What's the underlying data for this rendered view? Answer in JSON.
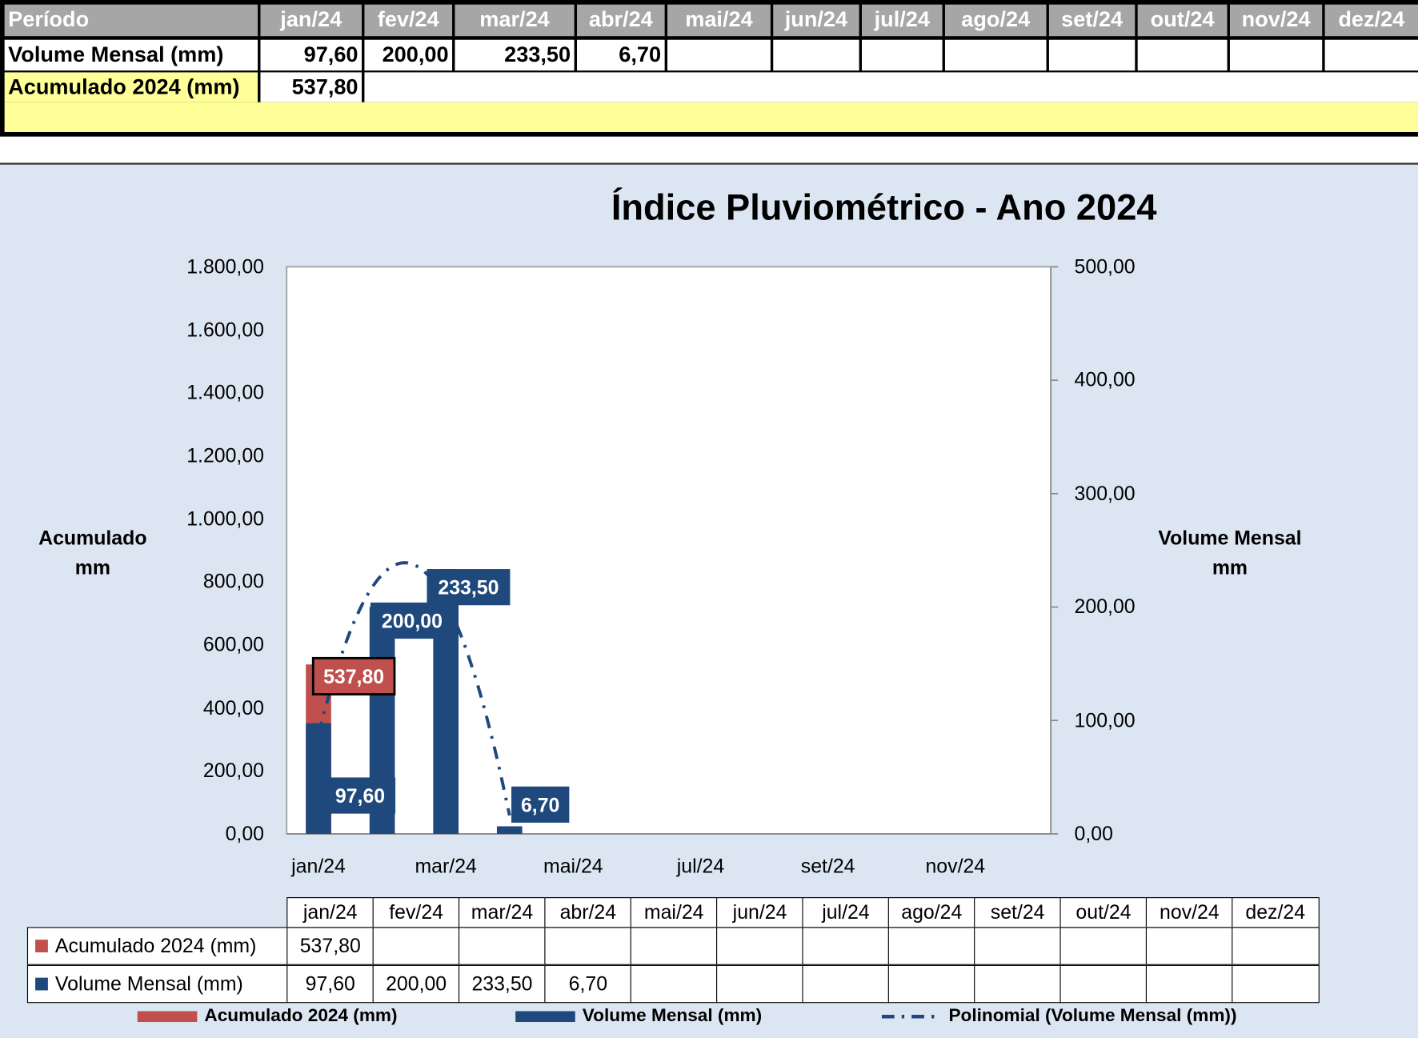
{
  "table": {
    "header_label": "Período",
    "months": [
      "jan/24",
      "fev/24",
      "mar/24",
      "abr/24",
      "mai/24",
      "jun/24",
      "jul/24",
      "ago/24",
      "set/24",
      "out/24",
      "nov/24",
      "dez/24"
    ],
    "volume_label": "Volume Mensal (mm)",
    "volume_values": [
      "97,60",
      "200,00",
      "233,50",
      "6,70",
      "",
      "",
      "",
      "",
      "",
      "",
      "",
      ""
    ],
    "acum_label": "Acumulado 2024 (mm)",
    "acum_value": "537,80"
  },
  "chart_data": {
    "type": "bar",
    "title": "Índice Pluviométrico - Ano 2024",
    "categories": [
      "jan/24",
      "fev/24",
      "mar/24",
      "abr/24",
      "mai/24",
      "jun/24",
      "jul/24",
      "ago/24",
      "set/24",
      "out/24",
      "nov/24",
      "dez/24"
    ],
    "x_tick_labels": [
      "jan/24",
      "mar/24",
      "mai/24",
      "jul/24",
      "set/24",
      "nov/24"
    ],
    "ylabel_left": [
      "Acumulado",
      "mm"
    ],
    "ylabel_right": [
      "Volume Mensal",
      "mm"
    ],
    "ylim_left": [
      0,
      1800
    ],
    "ylim_right": [
      0,
      500
    ],
    "y_ticks_left": [
      "0,00",
      "200,00",
      "400,00",
      "600,00",
      "800,00",
      "1.000,00",
      "1.200,00",
      "1.400,00",
      "1.600,00",
      "1.800,00"
    ],
    "y_ticks_right": [
      "0,00",
      "100,00",
      "200,00",
      "300,00",
      "400,00",
      "500,00"
    ],
    "series": [
      {
        "name": "Acumulado 2024 (mm)",
        "axis": "left",
        "color": "#c0504d",
        "values": [
          537.8,
          null,
          null,
          null,
          null,
          null,
          null,
          null,
          null,
          null,
          null,
          null
        ],
        "labels": [
          "537,80",
          "",
          "",
          "",
          "",
          "",
          "",
          "",
          "",
          "",
          "",
          ""
        ]
      },
      {
        "name": "Volume Mensal (mm)",
        "axis": "right",
        "color": "#1f497d",
        "values": [
          97.6,
          200.0,
          233.5,
          6.7,
          null,
          null,
          null,
          null,
          null,
          null,
          null,
          null
        ],
        "labels": [
          "97,60",
          "200,00",
          "233,50",
          "6,70",
          "",
          "",
          "",
          "",
          "",
          "",
          "",
          ""
        ]
      }
    ],
    "trendline": {
      "name": "Polinomial (Volume Mensal (mm))",
      "series": "Volume Mensal (mm)",
      "type": "polynomial",
      "order": 2,
      "style": "dash-dot",
      "color": "#1f497d"
    },
    "grid": false,
    "legend": "bottom",
    "data_table": true
  }
}
